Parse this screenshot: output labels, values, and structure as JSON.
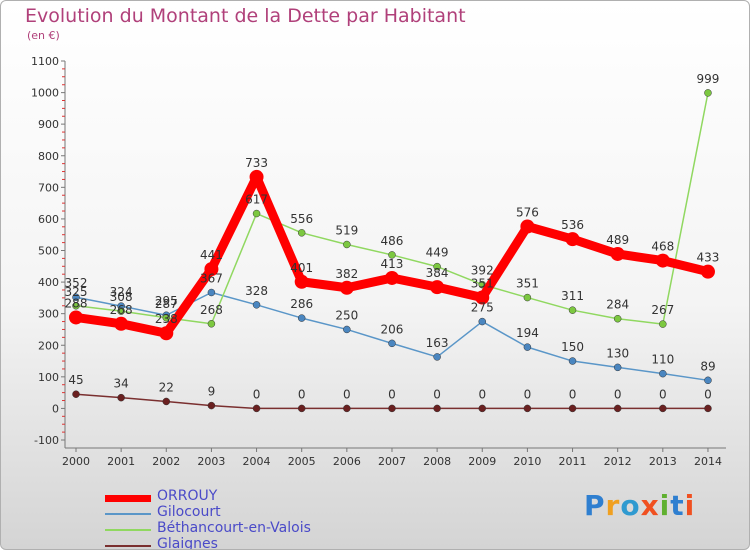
{
  "title": "Evolution du Montant de la Dette par Habitant",
  "subtitle": "(en €)",
  "brand": "Proxiti",
  "chart_data": {
    "type": "line",
    "x": [
      "2000",
      "2001",
      "2002",
      "2003",
      "2004",
      "2005",
      "2006",
      "2007",
      "2008",
      "2009",
      "2010",
      "2011",
      "2012",
      "2013",
      "2014"
    ],
    "y_ticks": [
      "-100",
      "0",
      "100",
      "200",
      "300",
      "400",
      "500",
      "600",
      "700",
      "800",
      "900",
      "1000",
      "1100"
    ],
    "ylim": [
      -100,
      1100
    ],
    "grid": false,
    "legend_position": "bottom-left",
    "series": [
      {
        "name": "ORROUY",
        "color": "#ff0000",
        "marker": "#ff0000",
        "bold": true,
        "values": [
          288,
          268,
          238,
          441,
          733,
          401,
          382,
          413,
          384,
          351,
          576,
          536,
          489,
          468,
          433
        ],
        "labels": [
          "288",
          "268",
          "238",
          "441",
          "733",
          "401",
          "382",
          "413",
          "384",
          "351",
          "576",
          "536",
          "489",
          "468",
          "433"
        ]
      },
      {
        "name": "Gilocourt",
        "color": "#5a96c8",
        "marker": "#4a86c0",
        "bold": false,
        "values": [
          352,
          324,
          295,
          367,
          328,
          286,
          250,
          206,
          163,
          275,
          194,
          150,
          130,
          110,
          89
        ],
        "labels": [
          "352",
          "324",
          "295",
          "367",
          "328",
          "286",
          "250",
          "206",
          "163",
          "275",
          "194",
          "150",
          "130",
          "110",
          "89"
        ]
      },
      {
        "name": "Béthancourt-en-Valois",
        "color": "#90d860",
        "marker": "#7cc840",
        "bold": false,
        "values": [
          325,
          308,
          287,
          268,
          617,
          556,
          519,
          486,
          449,
          392,
          351,
          311,
          284,
          267,
          999
        ],
        "labels": [
          "325",
          "308",
          "287",
          "268",
          "617",
          "556",
          "519",
          "486",
          "449",
          "392",
          "351",
          "311",
          "284",
          "267",
          "999"
        ]
      },
      {
        "name": "Glaignes",
        "color": "#7a2f2f",
        "marker": "#6a2020",
        "bold": false,
        "values": [
          45,
          34,
          22,
          9,
          0,
          0,
          0,
          0,
          0,
          0,
          0,
          0,
          0,
          0,
          0
        ],
        "labels": [
          "45",
          "34",
          "22",
          "9",
          "0",
          "0",
          "0",
          "0",
          "0",
          "0",
          "0",
          "0",
          "0",
          "0",
          "0"
        ]
      }
    ]
  }
}
